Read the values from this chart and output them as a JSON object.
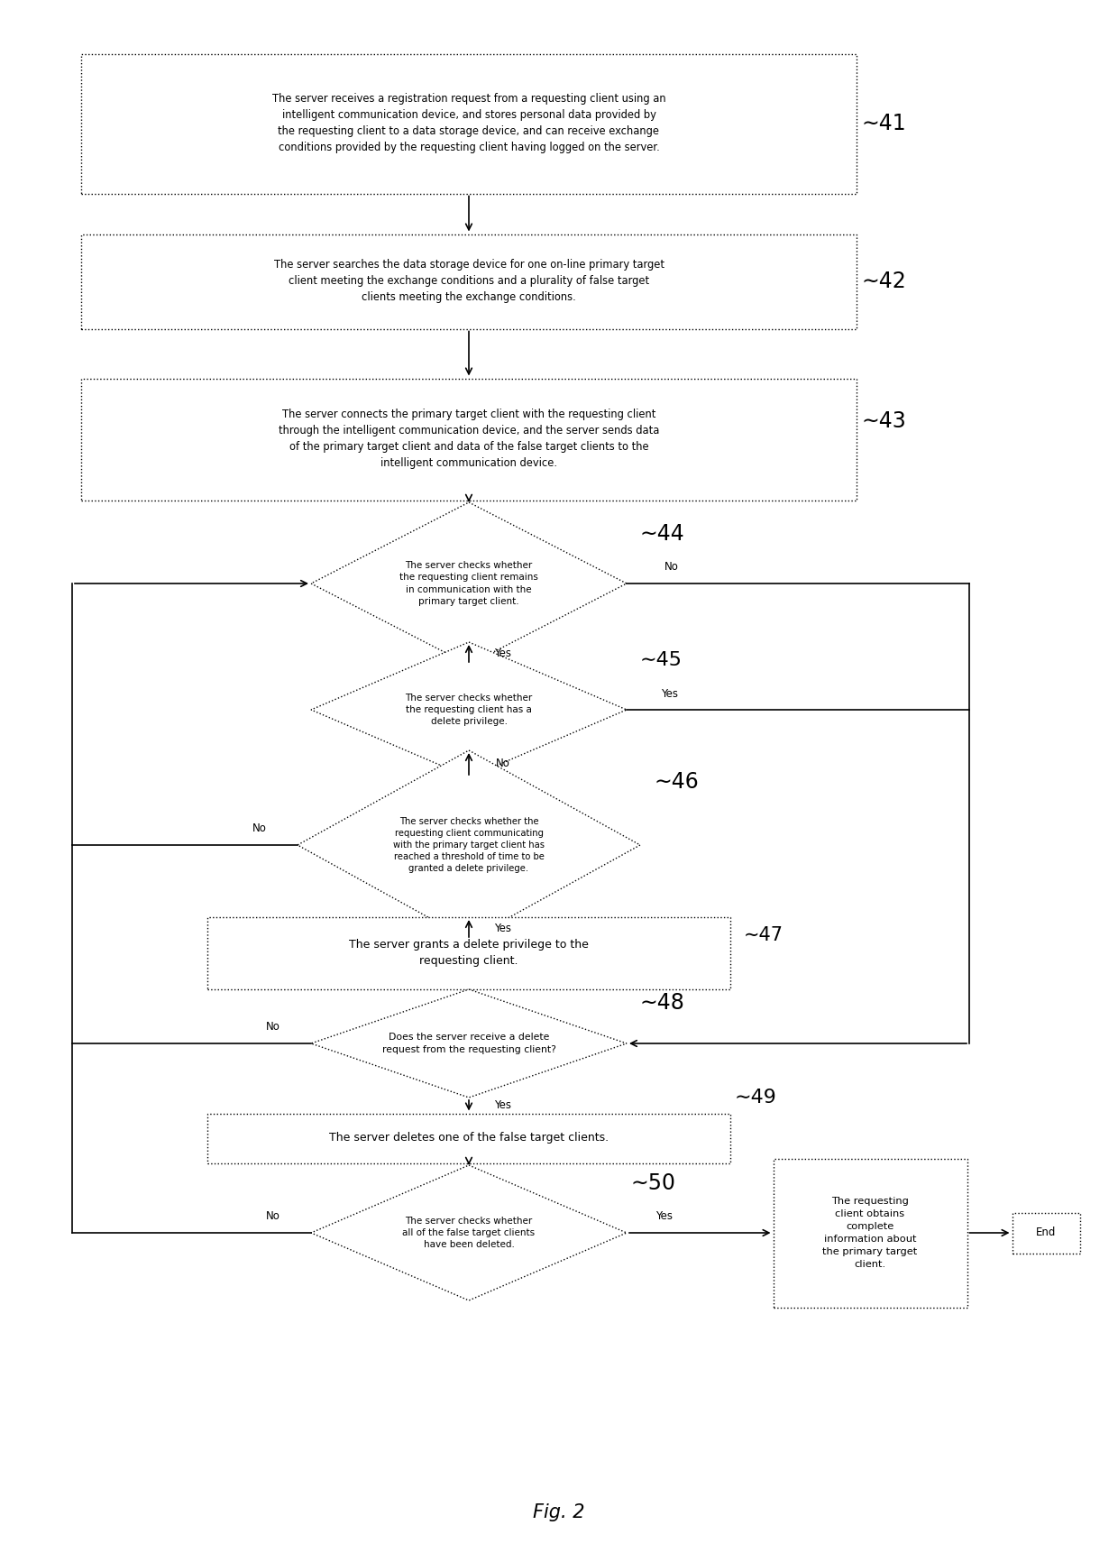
{
  "title": "Fig. 2",
  "background_color": "#ffffff",
  "box41_text": "The server receives a registration request from a requesting client using an\nintelligent communication device, and stores personal data provided by\nthe requesting client to a data storage device, and can receive exchange\nconditions provided by the requesting client having logged on the server.",
  "box41_label": "41",
  "box42_text": "The server searches the data storage device for one on-line primary target\nclient meeting the exchange conditions and a plurality of false target\nclients meeting the exchange conditions.",
  "box42_label": "42",
  "box43_text": "The server connects the primary target client with the requesting client\nthrough the intelligent communication device, and the server sends data\nof the primary target client and data of the false target clients to the\nintelligent communication device.",
  "box43_label": "43",
  "d44_text": "The server checks whether\nthe requesting client remains\nin communication with the\nprimary target client.",
  "d44_label": "44",
  "d45_text": "The server checks whether\nthe requesting client has a\ndelete privilege.",
  "d45_label": "45",
  "d46_text": "The server checks whether the\nrequesting client communicating\nwith the primary target client has\nreached a threshold of time to be\ngranted a delete privilege.",
  "d46_label": "46",
  "box47_text": "The server grants a delete privilege to the\nrequesting client.",
  "box47_label": "47",
  "d48_text": "Does the server receive a delete\nrequest from the requesting client?",
  "d48_label": "48",
  "box49_text": "The server deletes one of the false target clients.",
  "box49_label": "49",
  "d50_text": "The server checks whether\nall of the false target clients\nhave been deleted.",
  "d50_label": "50",
  "box_right_text": "The requesting\nclient obtains\ncomplete\ninformation about\nthe primary target\nclient.",
  "end_text": "End",
  "fig_title": "Fig. 2"
}
